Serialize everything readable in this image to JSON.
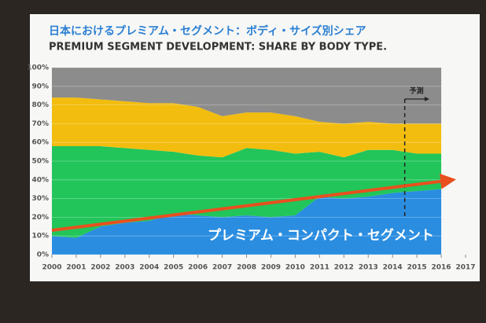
{
  "chart_data": {
    "type": "stacked_area",
    "title": "日本におけるプレミアム・セグメント：ボディ・サイズ別シェア",
    "subtitle": "PREMIUM SEGMENT DEVELOPMENT: SHARE BY BODY TYPE.",
    "x": [
      2000,
      2001,
      2002,
      2003,
      2004,
      2005,
      2006,
      2007,
      2008,
      2009,
      2010,
      2011,
      2012,
      2013,
      2014,
      2015,
      2016
    ],
    "series": [
      {
        "name": "プレミアム・コンパクト・セグメント",
        "color": "#2a8de0",
        "values": [
          10,
          9,
          15,
          17,
          18,
          22,
          21,
          20,
          21,
          20,
          21,
          31,
          30,
          31,
          33,
          34,
          35
        ]
      },
      {
        "color": "#22c55a",
        "values": [
          48,
          49,
          43,
          40,
          38,
          33,
          32,
          32,
          36,
          36,
          33,
          24,
          22,
          25,
          23,
          20,
          19
        ]
      },
      {
        "color": "#f2bd0e",
        "values": [
          26,
          26,
          25,
          25,
          25,
          26,
          26,
          22,
          19,
          20,
          20,
          16,
          18,
          15,
          14,
          16,
          16
        ]
      },
      {
        "color": "#8c8c8c",
        "values": [
          16,
          16,
          17,
          18,
          19,
          19,
          21,
          26,
          24,
          24,
          26,
          29,
          30,
          29,
          30,
          30,
          30
        ]
      }
    ],
    "xlim": [
      2000,
      2017
    ],
    "xticks": [
      2000,
      2001,
      2002,
      2003,
      2004,
      2005,
      2006,
      2007,
      2008,
      2009,
      2010,
      2011,
      2012,
      2013,
      2014,
      2015,
      2016,
      2017
    ],
    "ylim": [
      0,
      100
    ],
    "yticks": [
      {
        "value": 0,
        "label": "0%"
      },
      {
        "value": 10,
        "label": "10%"
      },
      {
        "value": 20,
        "label": "20%"
      },
      {
        "value": 30,
        "label": "30%"
      },
      {
        "value": 40,
        "label": "40%"
      },
      {
        "value": 50,
        "label": "50%"
      },
      {
        "value": 60,
        "label": "60%"
      },
      {
        "value": 70,
        "label": "70%"
      },
      {
        "value": 80,
        "label": "80%"
      },
      {
        "value": 90,
        "label": "90%"
      },
      {
        "value": 100,
        "label": "100%"
      }
    ],
    "grid": true,
    "forecast": {
      "label": "予測",
      "x": 2014.5
    },
    "trend": {
      "color": "#e8501e",
      "x": [
        2000,
        2017
      ],
      "values": [
        13,
        40
      ]
    }
  }
}
